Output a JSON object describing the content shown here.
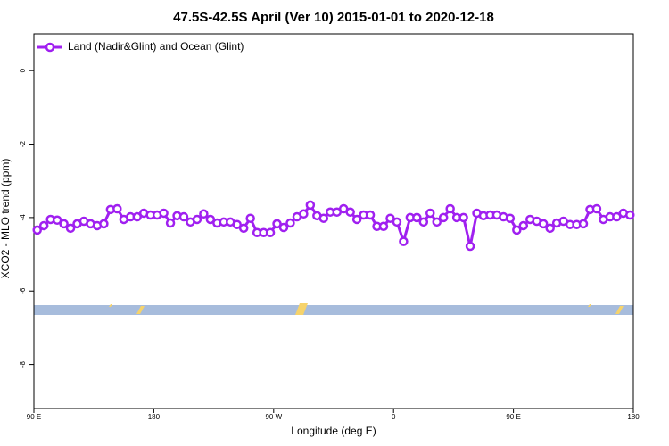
{
  "chart_data": {
    "type": "line",
    "title": "47.5S-42.5S April (Ver 10)   2015-01-01 to 2020-12-18",
    "x_label": "Longitude (deg E)",
    "y_label": "XCO2 - MLO trend (ppm)",
    "legend": "top-left",
    "xlim": [
      90,
      540
    ],
    "ylim": [
      -9.2,
      1
    ],
    "xticks": [
      {
        "value": 90,
        "label": "90 E"
      },
      180,
      {
        "value": 270,
        "label": "90 W"
      },
      {
        "value": 360,
        "label": "0"
      },
      {
        "value": 450,
        "label": "90 E"
      },
      {
        "value": 540,
        "label": "180"
      }
    ],
    "yticks": [
      0,
      -2,
      -4,
      -6,
      -8
    ],
    "x": [
      92.5,
      97.5,
      102.5,
      107.5,
      112.5,
      117.5,
      122.5,
      127.5,
      132.5,
      137.5,
      142.5,
      147.5,
      152.5,
      157.5,
      162.5,
      167.5,
      172.5,
      177.5,
      182.5,
      187.5,
      192.5,
      197.5,
      202.5,
      207.5,
      212.5,
      217.5,
      222.5,
      227.5,
      232.5,
      237.5,
      242.5,
      247.5,
      252.5,
      257.5,
      262.5,
      267.5,
      272.5,
      277.5,
      282.5,
      287.5,
      292.5,
      297.5,
      302.5,
      307.5,
      312.5,
      317.5,
      322.5,
      327.5,
      332.5,
      337.5,
      342.5,
      347.5,
      352.5,
      357.5,
      362.5,
      367.5,
      372.5,
      377.5,
      382.5,
      387.5,
      392.5,
      397.5,
      402.5,
      407.5,
      412.5,
      417.5,
      422.5,
      427.5,
      432.5,
      437.5,
      442.5,
      447.5,
      452.5,
      457.5,
      462.5,
      467.5,
      472.5,
      477.5,
      482.5,
      487.5,
      492.5,
      497.5,
      502.5,
      507.5,
      512.5,
      517.5,
      522.5,
      527.5,
      532.5,
      537.5
    ],
    "series": [
      {
        "name": "Land (Nadir&Glint) and Ocean (Glint)",
        "color": "#a020f0",
        "values": [
          -4.34,
          -4.22,
          -4.05,
          -4.07,
          -4.17,
          -4.29,
          -4.17,
          -4.1,
          -4.17,
          -4.22,
          -4.17,
          -3.78,
          -3.76,
          -4.05,
          -3.98,
          -3.98,
          -3.88,
          -3.93,
          -3.93,
          -3.88,
          -4.15,
          -3.95,
          -3.98,
          -4.12,
          -4.05,
          -3.9,
          -4.05,
          -4.15,
          -4.12,
          -4.12,
          -4.19,
          -4.29,
          -4.02,
          -4.41,
          -4.41,
          -4.41,
          -4.17,
          -4.27,
          -4.15,
          -3.98,
          -3.9,
          -3.66,
          -3.95,
          -4.02,
          -3.85,
          -3.85,
          -3.76,
          -3.85,
          -4.05,
          -3.93,
          -3.93,
          -4.24,
          -4.24,
          -4.02,
          -4.12,
          -4.65,
          -4.0,
          -4.0,
          -4.12,
          -3.88,
          -4.12,
          -4.0,
          -3.76,
          -4.0,
          -4.0,
          -4.78,
          -3.88,
          -3.95,
          -3.93,
          -3.93,
          -3.98,
          -4.02,
          -4.34,
          -4.22,
          -4.05,
          -4.1,
          -4.17,
          -4.29,
          -4.15,
          -4.1,
          -4.19,
          -4.19,
          -4.17,
          -3.78,
          -3.76,
          -4.05,
          -3.98,
          -3.98,
          -3.88,
          -3.93
        ]
      }
    ]
  }
}
